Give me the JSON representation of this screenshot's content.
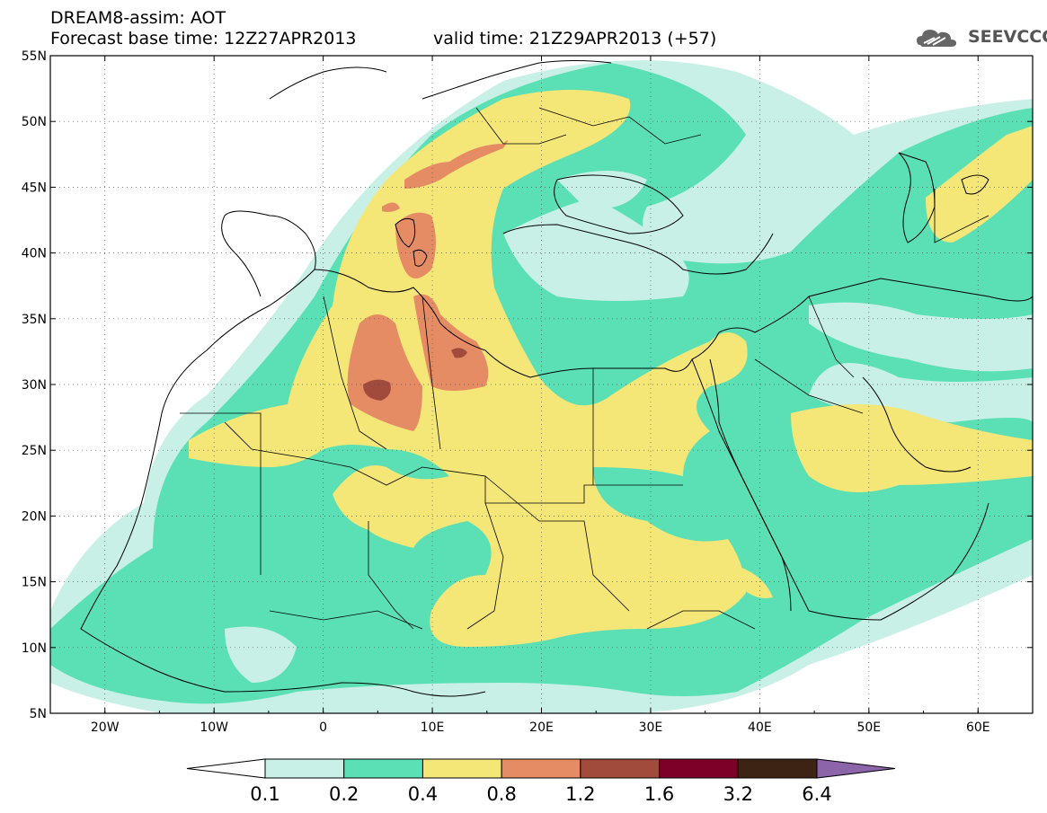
{
  "title": {
    "model": "DREAM8-assim: AOT",
    "base_time": "Forecast base time: 12Z27APR2013",
    "valid_time": "valid time: 21Z29APR2013 (+57)"
  },
  "logo": {
    "text": "SEEVCCC",
    "icon": "cloud-icon"
  },
  "map": {
    "lat_labels": [
      "55N",
      "50N",
      "45N",
      "40N",
      "35N",
      "30N",
      "25N",
      "20N",
      "15N",
      "10N",
      "5N"
    ],
    "lon_labels": [
      "20W",
      "10W",
      "0",
      "10E",
      "20E",
      "30E",
      "40E",
      "50E",
      "60E"
    ],
    "lon_range": [
      -25,
      65
    ],
    "lat_range": [
      5,
      55
    ],
    "grid": "dotted"
  },
  "colorbar": {
    "levels": [
      "0.1",
      "0.2",
      "0.4",
      "0.8",
      "1.2",
      "1.6",
      "3.2",
      "6.4"
    ],
    "colors": [
      "#ffffff",
      "#c8f0e6",
      "#5ae0b4",
      "#f5e678",
      "#e68c64",
      "#a04b3c",
      "#7d0028",
      "#3c2314",
      "#8c64aa"
    ]
  }
}
